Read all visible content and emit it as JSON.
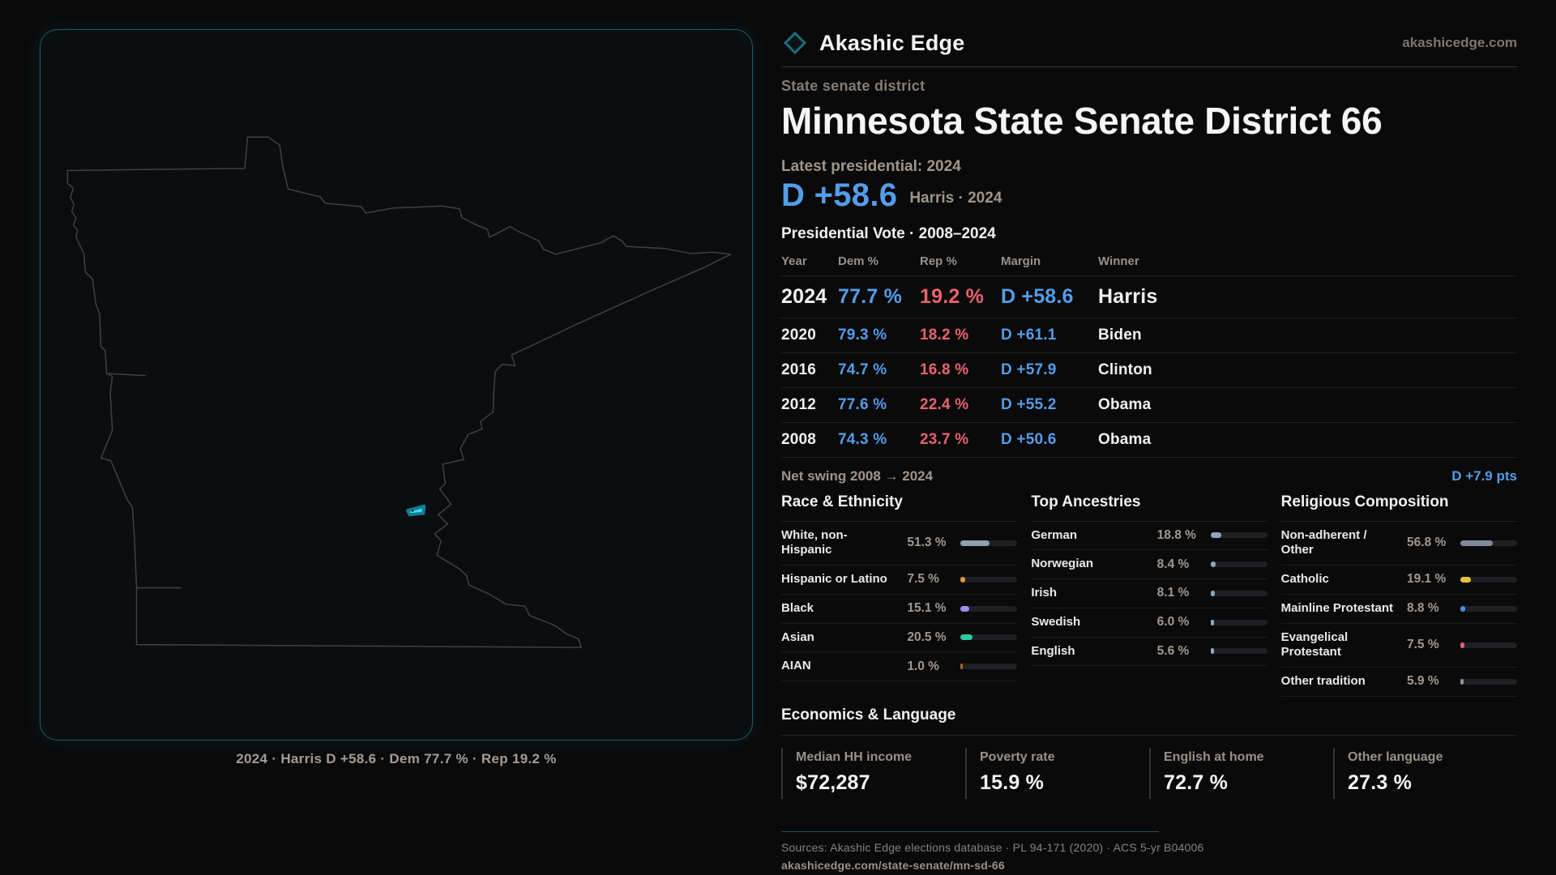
{
  "brand": {
    "name": "Akashic Edge",
    "domain": "akashicedge.com"
  },
  "page": {
    "kicker": "State senate district",
    "title": "Minnesota State Senate District 66",
    "latest_label": "Latest presidential: 2024",
    "latest_margin": "D +58.6",
    "latest_sub": "Harris · 2024",
    "table_title": "Presidential Vote · 2008–2024",
    "net_swing_label": "Net swing 2008 → 2024",
    "net_swing_value": "D +7.9 pts"
  },
  "map": {
    "caption": "2024 · Harris D +58.6 · Dem 77.7 % · Rep 19.2 %"
  },
  "vote_table": {
    "headers": [
      "Year",
      "Dem %",
      "Rep %",
      "Margin",
      "Winner"
    ],
    "rows": [
      {
        "year": "2024",
        "dem": "77.7 %",
        "rep": "19.2 %",
        "margin": "D +58.6",
        "winner": "Harris",
        "featured": true
      },
      {
        "year": "2020",
        "dem": "79.3 %",
        "rep": "18.2 %",
        "margin": "D +61.1",
        "winner": "Biden"
      },
      {
        "year": "2016",
        "dem": "74.7 %",
        "rep": "16.8 %",
        "margin": "D +57.9",
        "winner": "Clinton"
      },
      {
        "year": "2012",
        "dem": "77.6 %",
        "rep": "22.4 %",
        "margin": "D +55.2",
        "winner": "Obama"
      },
      {
        "year": "2008",
        "dem": "74.3 %",
        "rep": "23.7 %",
        "margin": "D +50.6",
        "winner": "Obama"
      }
    ]
  },
  "demographics": [
    {
      "title": "Race & Ethnicity",
      "rows": [
        {
          "label": "White, non-\nHispanic",
          "value": "51.3 %",
          "pct": 51.3,
          "color": "#8fa0b5"
        },
        {
          "label": "Hispanic or Latino",
          "value": "7.5 %",
          "pct": 7.5,
          "color": "#e09b3b"
        },
        {
          "label": "Black",
          "value": "15.1 %",
          "pct": 15.1,
          "color": "#9f8ef2"
        },
        {
          "label": "Asian",
          "value": "20.5 %",
          "pct": 20.5,
          "color": "#2ec9a0"
        },
        {
          "label": "AIAN",
          "value": "1.0 %",
          "pct": 1.0,
          "color": "#b06226"
        }
      ]
    },
    {
      "title": "Top Ancestries",
      "rows": [
        {
          "label": "German",
          "value": "18.8 %",
          "pct": 18.8,
          "color": "#8fa6c2"
        },
        {
          "label": "Norwegian",
          "value": "8.4 %",
          "pct": 8.4,
          "color": "#8fa6c2"
        },
        {
          "label": "Irish",
          "value": "8.1 %",
          "pct": 8.1,
          "color": "#8fa6c2"
        },
        {
          "label": "Swedish",
          "value": "6.0 %",
          "pct": 6.0,
          "color": "#8fa6c2"
        },
        {
          "label": "English",
          "value": "5.6 %",
          "pct": 5.6,
          "color": "#8fa6c2"
        }
      ]
    },
    {
      "title": "Religious Composition",
      "rows": [
        {
          "label": "Non-adherent /\nOther",
          "value": "56.8 %",
          "pct": 56.8,
          "color": "#7e8a9c"
        },
        {
          "label": "Catholic",
          "value": "19.1 %",
          "pct": 19.1,
          "color": "#e7c339"
        },
        {
          "label": "Mainline Protestant",
          "value": "8.8 %",
          "pct": 8.8,
          "color": "#4a90e2"
        },
        {
          "label": "Evangelical\nProtestant",
          "value": "7.5 %",
          "pct": 7.5,
          "color": "#e2636e"
        },
        {
          "label": "Other tradition",
          "value": "5.9 %",
          "pct": 5.9,
          "color": "#8d939e"
        }
      ]
    }
  ],
  "economics": {
    "title": "Economics & Language",
    "stats": [
      {
        "label": "Median HH income",
        "value": "$72,287"
      },
      {
        "label": "Poverty rate",
        "value": "15.9 %"
      },
      {
        "label": "English at home",
        "value": "72.7 %"
      },
      {
        "label": "Other language",
        "value": "27.3 %"
      }
    ]
  },
  "footer": {
    "sources": "Sources: Akashic Edge elections database · PL 94-171 (2020) · ACS 5-yr B04006",
    "permalink": "akashicedge.com/state-senate/mn-sd-66"
  },
  "colors": {
    "dem_blue": "#549de8",
    "rep_red": "#e8636d",
    "accent_teal": "#176070",
    "district_cyan": "#45d9f2",
    "background": "#0a0a0b",
    "muted_text": "#a0958a"
  },
  "chart_data": [
    {
      "type": "table",
      "title": "Presidential Vote · 2008–2024",
      "columns": [
        "Year",
        "Dem %",
        "Rep %",
        "Margin",
        "Winner"
      ],
      "rows": [
        [
          2024,
          77.7,
          19.2,
          "D +58.6",
          "Harris"
        ],
        [
          2020,
          79.3,
          18.2,
          "D +61.1",
          "Biden"
        ],
        [
          2016,
          74.7,
          16.8,
          "D +57.9",
          "Clinton"
        ],
        [
          2012,
          77.6,
          22.4,
          "D +55.2",
          "Obama"
        ],
        [
          2008,
          74.3,
          23.7,
          "D +50.6",
          "Obama"
        ]
      ],
      "annotations": [
        "Latest presidential: 2024 — D +58.6 (Harris)",
        "Net swing 2008 → 2024: D +7.9 pts"
      ]
    },
    {
      "type": "bar",
      "title": "Race & Ethnicity",
      "categories": [
        "White, non-Hispanic",
        "Hispanic or Latino",
        "Black",
        "Asian",
        "AIAN"
      ],
      "values": [
        51.3,
        7.5,
        15.1,
        20.5,
        1.0
      ],
      "xlabel": "",
      "ylabel": "Percent",
      "xlim": [
        0,
        100
      ],
      "grid": false,
      "legend": false
    },
    {
      "type": "bar",
      "title": "Top Ancestries",
      "categories": [
        "German",
        "Norwegian",
        "Irish",
        "Swedish",
        "English"
      ],
      "values": [
        18.8,
        8.4,
        8.1,
        6.0,
        5.6
      ],
      "xlabel": "",
      "ylabel": "Percent",
      "xlim": [
        0,
        100
      ],
      "grid": false,
      "legend": false
    },
    {
      "type": "bar",
      "title": "Religious Composition",
      "categories": [
        "Non-adherent / Other",
        "Catholic",
        "Mainline Protestant",
        "Evangelical Protestant",
        "Other tradition"
      ],
      "values": [
        56.8,
        19.1,
        8.8,
        7.5,
        5.9
      ],
      "xlabel": "",
      "ylabel": "Percent",
      "xlim": [
        0,
        100
      ],
      "grid": false,
      "legend": false
    },
    {
      "type": "table",
      "title": "Economics & Language",
      "columns": [
        "Median HH income",
        "Poverty rate",
        "English at home",
        "Other language"
      ],
      "rows": [
        [
          "$72,287",
          "15.9 %",
          "72.7 %",
          "27.3 %"
        ]
      ]
    }
  ]
}
